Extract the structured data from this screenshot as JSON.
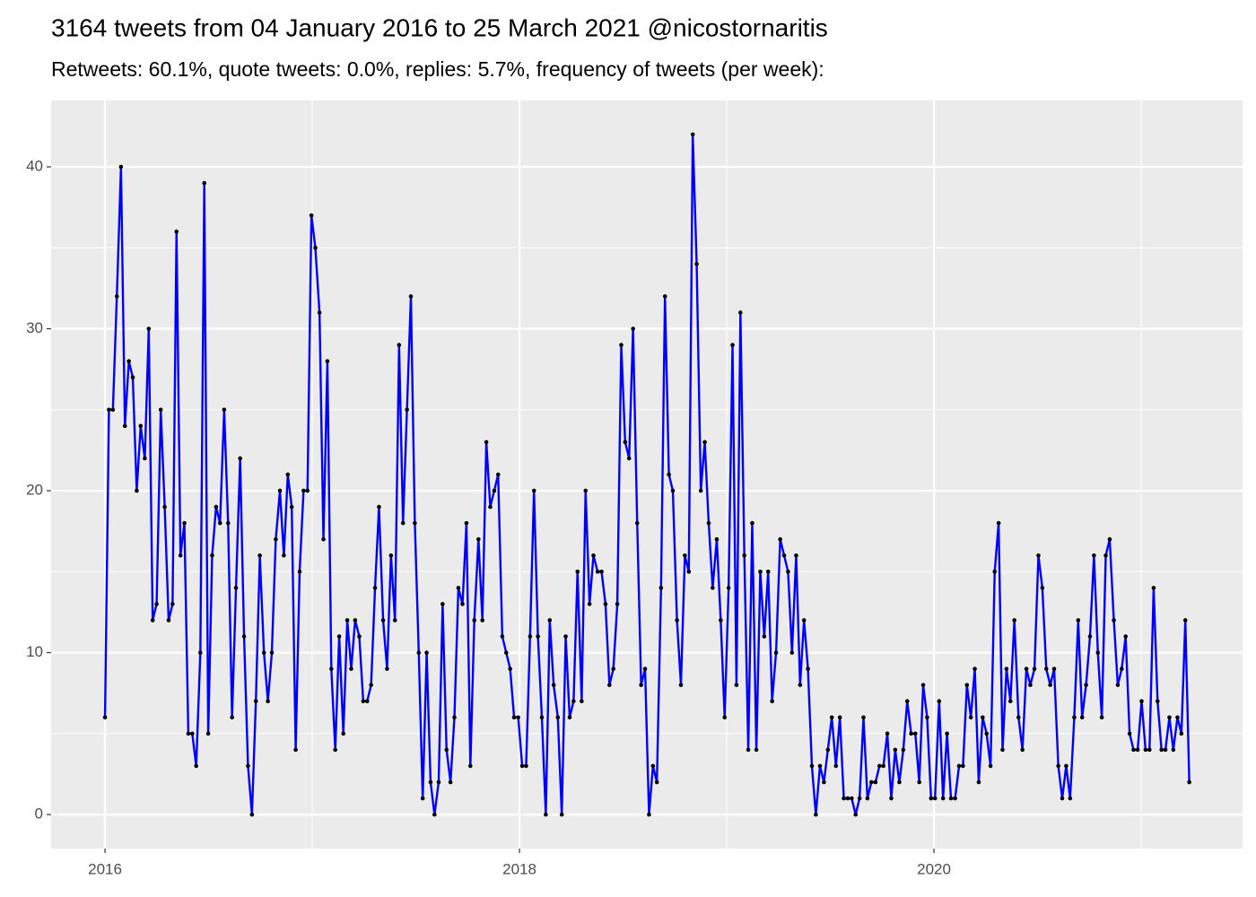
{
  "chart_data": {
    "type": "line",
    "title": "3164 tweets from 04 January 2016 to 25 March 2021 @nicostornaritis",
    "subtitle": "Retweets: 60.1%, quote tweets: 0.0%, replies: 5.7%, frequency of tweets (per week):",
    "x": [
      2016,
      2016.019,
      2016.038,
      2016.057,
      2016.077,
      2016.096,
      2016.115,
      2016.134,
      2016.153,
      2016.172,
      2016.192,
      2016.211,
      2016.23,
      2016.249,
      2016.269,
      2016.288,
      2016.307,
      2016.326,
      2016.345,
      2016.364,
      2016.383,
      2016.402,
      2016.421,
      2016.44,
      2016.46,
      2016.479,
      2016.498,
      2016.517,
      2016.536,
      2016.555,
      2016.575,
      2016.594,
      2016.613,
      2016.632,
      2016.652,
      2016.671,
      2016.69,
      2016.709,
      2016.728,
      2016.747,
      2016.767,
      2016.786,
      2016.805,
      2016.824,
      2016.844,
      2016.863,
      2016.882,
      2016.901,
      2016.92,
      2016.939,
      2016.958,
      2016.977,
      2016.996,
      2017.015,
      2017.035,
      2017.054,
      2017.073,
      2017.092,
      2017.111,
      2017.13,
      2017.15,
      2017.169,
      2017.188,
      2017.207,
      2017.227,
      2017.246,
      2017.265,
      2017.284,
      2017.303,
      2017.322,
      2017.342,
      2017.361,
      2017.38,
      2017.399,
      2017.419,
      2017.438,
      2017.457,
      2017.476,
      2017.495,
      2017.514,
      2017.533,
      2017.552,
      2017.571,
      2017.59,
      2017.61,
      2017.629,
      2017.648,
      2017.667,
      2017.686,
      2017.705,
      2017.725,
      2017.744,
      2017.763,
      2017.782,
      2017.802,
      2017.821,
      2017.84,
      2017.859,
      2017.878,
      2017.897,
      2017.917,
      2017.936,
      2017.955,
      2017.974,
      2017.994,
      2018.013,
      2018.032,
      2018.051,
      2018.07,
      2018.089,
      2018.108,
      2018.127,
      2018.146,
      2018.165,
      2018.185,
      2018.204,
      2018.223,
      2018.242,
      2018.261,
      2018.28,
      2018.3,
      2018.319,
      2018.338,
      2018.357,
      2018.377,
      2018.396,
      2018.415,
      2018.434,
      2018.453,
      2018.472,
      2018.491,
      2018.51,
      2018.529,
      2018.548,
      2018.568,
      2018.587,
      2018.606,
      2018.625,
      2018.644,
      2018.663,
      2018.683,
      2018.702,
      2018.721,
      2018.74,
      2018.76,
      2018.779,
      2018.798,
      2018.817,
      2018.836,
      2018.855,
      2018.875,
      2018.894,
      2018.913,
      2018.932,
      2018.952,
      2018.971,
      2018.99,
      2019.009,
      2019.028,
      2019.047,
      2019.066,
      2019.085,
      2019.104,
      2019.123,
      2019.143,
      2019.162,
      2019.181,
      2019.2,
      2019.219,
      2019.238,
      2019.258,
      2019.277,
      2019.296,
      2019.315,
      2019.335,
      2019.354,
      2019.373,
      2019.392,
      2019.411,
      2019.43,
      2019.45,
      2019.469,
      2019.488,
      2019.507,
      2019.527,
      2019.546,
      2019.565,
      2019.584,
      2019.603,
      2019.622,
      2019.641,
      2019.66,
      2019.679,
      2019.698,
      2019.718,
      2019.737,
      2019.756,
      2019.775,
      2019.794,
      2019.813,
      2019.833,
      2019.852,
      2019.871,
      2019.89,
      2019.91,
      2019.929,
      2019.948,
      2019.967,
      2019.986,
      2020.005,
      2020.025,
      2020.044,
      2020.063,
      2020.082,
      2020.102,
      2020.121,
      2020.14,
      2020.159,
      2020.178,
      2020.197,
      2020.216,
      2020.235,
      2020.254,
      2020.273,
      2020.293,
      2020.312,
      2020.331,
      2020.35,
      2020.369,
      2020.388,
      2020.408,
      2020.427,
      2020.446,
      2020.465,
      2020.485,
      2020.504,
      2020.523,
      2020.542,
      2020.561,
      2020.58,
      2020.6,
      2020.619,
      2020.638,
      2020.657,
      2020.677,
      2020.696,
      2020.715,
      2020.734,
      2020.753,
      2020.772,
      2020.791,
      2020.81,
      2020.829,
      2020.848,
      2020.868,
      2020.887,
      2020.906,
      2020.925,
      2020.944,
      2020.963,
      2020.983,
      2021.002,
      2021.021,
      2021.04,
      2021.06,
      2021.079,
      2021.098,
      2021.117,
      2021.136,
      2021.155,
      2021.175,
      2021.194,
      2021.213,
      2021.232
    ],
    "series": [
      {
        "color": "#0000ff",
        "marker_color": "#000000",
        "values": [
          6,
          25,
          25,
          32,
          40,
          24,
          28,
          27,
          20,
          24,
          22,
          30,
          12,
          13,
          25,
          19,
          12,
          13,
          36,
          16,
          18,
          5,
          5,
          3,
          10,
          39,
          5,
          16,
          19,
          18,
          25,
          18,
          6,
          14,
          22,
          11,
          3,
          0,
          7,
          16,
          10,
          7,
          10,
          17,
          20,
          16,
          21,
          19,
          4,
          15,
          20,
          20,
          37,
          35,
          31,
          17,
          28,
          9,
          4,
          11,
          5,
          12,
          9,
          12,
          11,
          7,
          7,
          8,
          14,
          19,
          12,
          9,
          16,
          12,
          29,
          18,
          25,
          32,
          18,
          10,
          1,
          10,
          2,
          0,
          2,
          13,
          4,
          2,
          6,
          14,
          13,
          18,
          3,
          12,
          17,
          12,
          23,
          19,
          20,
          21,
          11,
          10,
          9,
          6,
          6,
          3,
          3,
          11,
          20,
          11,
          6,
          0,
          12,
          8,
          6,
          0,
          11,
          6,
          7,
          15,
          7,
          20,
          13,
          16,
          15,
          15,
          13,
          8,
          9,
          13,
          29,
          23,
          22,
          30,
          18,
          8,
          9,
          0,
          3,
          2,
          14,
          32,
          21,
          20,
          12,
          8,
          16,
          15,
          42,
          34,
          20,
          23,
          18,
          14,
          17,
          12,
          6,
          14,
          29,
          8,
          31,
          16,
          4,
          18,
          4,
          15,
          11,
          15,
          7,
          10,
          17,
          16,
          15,
          10,
          16,
          8,
          12,
          9,
          3,
          0,
          3,
          2,
          4,
          6,
          3,
          6,
          1,
          1,
          1,
          0,
          1,
          6,
          1,
          2,
          2,
          3,
          3,
          5,
          1,
          4,
          2,
          4,
          7,
          5,
          5,
          2,
          8,
          6,
          1,
          1,
          7,
          1,
          5,
          1,
          1,
          3,
          3,
          8,
          6,
          9,
          2,
          6,
          5,
          3,
          15,
          18,
          4,
          9,
          7,
          12,
          6,
          4,
          9,
          8,
          9,
          16,
          14,
          9,
          8,
          9,
          3,
          1,
          3,
          1,
          6,
          12,
          6,
          8,
          11,
          16,
          10,
          6,
          16,
          17,
          12,
          8,
          9,
          11,
          5,
          4,
          4,
          7,
          4,
          4,
          14,
          7,
          4,
          4,
          6,
          4,
          6,
          5,
          12,
          2
        ]
      }
    ],
    "xlim": [
      2015.74,
      2021.489
    ],
    "ylim": [
      -2.1,
      44.1
    ],
    "xticks": [
      2016,
      2018,
      2020
    ],
    "yticks": [
      0,
      10,
      20,
      30,
      40
    ],
    "xminor": [
      2017,
      2019,
      2021
    ],
    "yminor": [
      5,
      15,
      25,
      35
    ],
    "grid": true
  }
}
